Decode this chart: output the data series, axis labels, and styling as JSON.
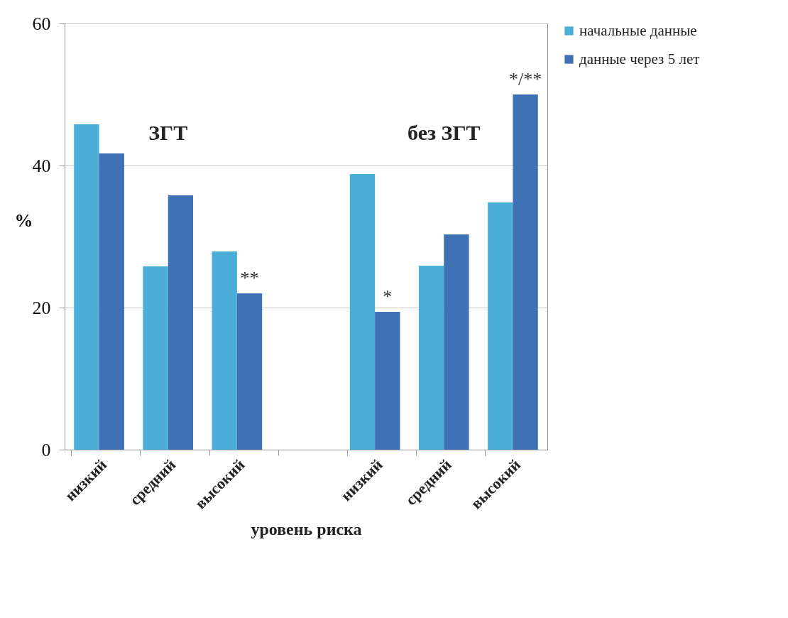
{
  "chart_data": {
    "type": "bar",
    "xlabel": "уровень риска",
    "ylabel": "%",
    "categories": [
      "низкий",
      "средний",
      "высокий",
      null,
      "низкий",
      "средний",
      "высокий"
    ],
    "series": [
      {
        "name": "начальные данные",
        "color": "#4aaed8",
        "values": [
          45.8,
          25.8,
          27.9,
          null,
          38.8,
          25.9,
          34.8
        ]
      },
      {
        "name": "данные через 5 лет",
        "color": "#3f72b5",
        "values": [
          41.7,
          35.8,
          22.0,
          null,
          19.4,
          30.3,
          50.0
        ],
        "value_labels": [
          null,
          null,
          "**",
          null,
          "*",
          null,
          "*/**"
        ]
      }
    ],
    "ylim": [
      0,
      60
    ],
    "yticks": [
      0,
      20,
      40,
      60
    ],
    "grid": "y",
    "legend": "right",
    "annotations": [
      "ЗГТ",
      "без ЗГТ"
    ]
  }
}
